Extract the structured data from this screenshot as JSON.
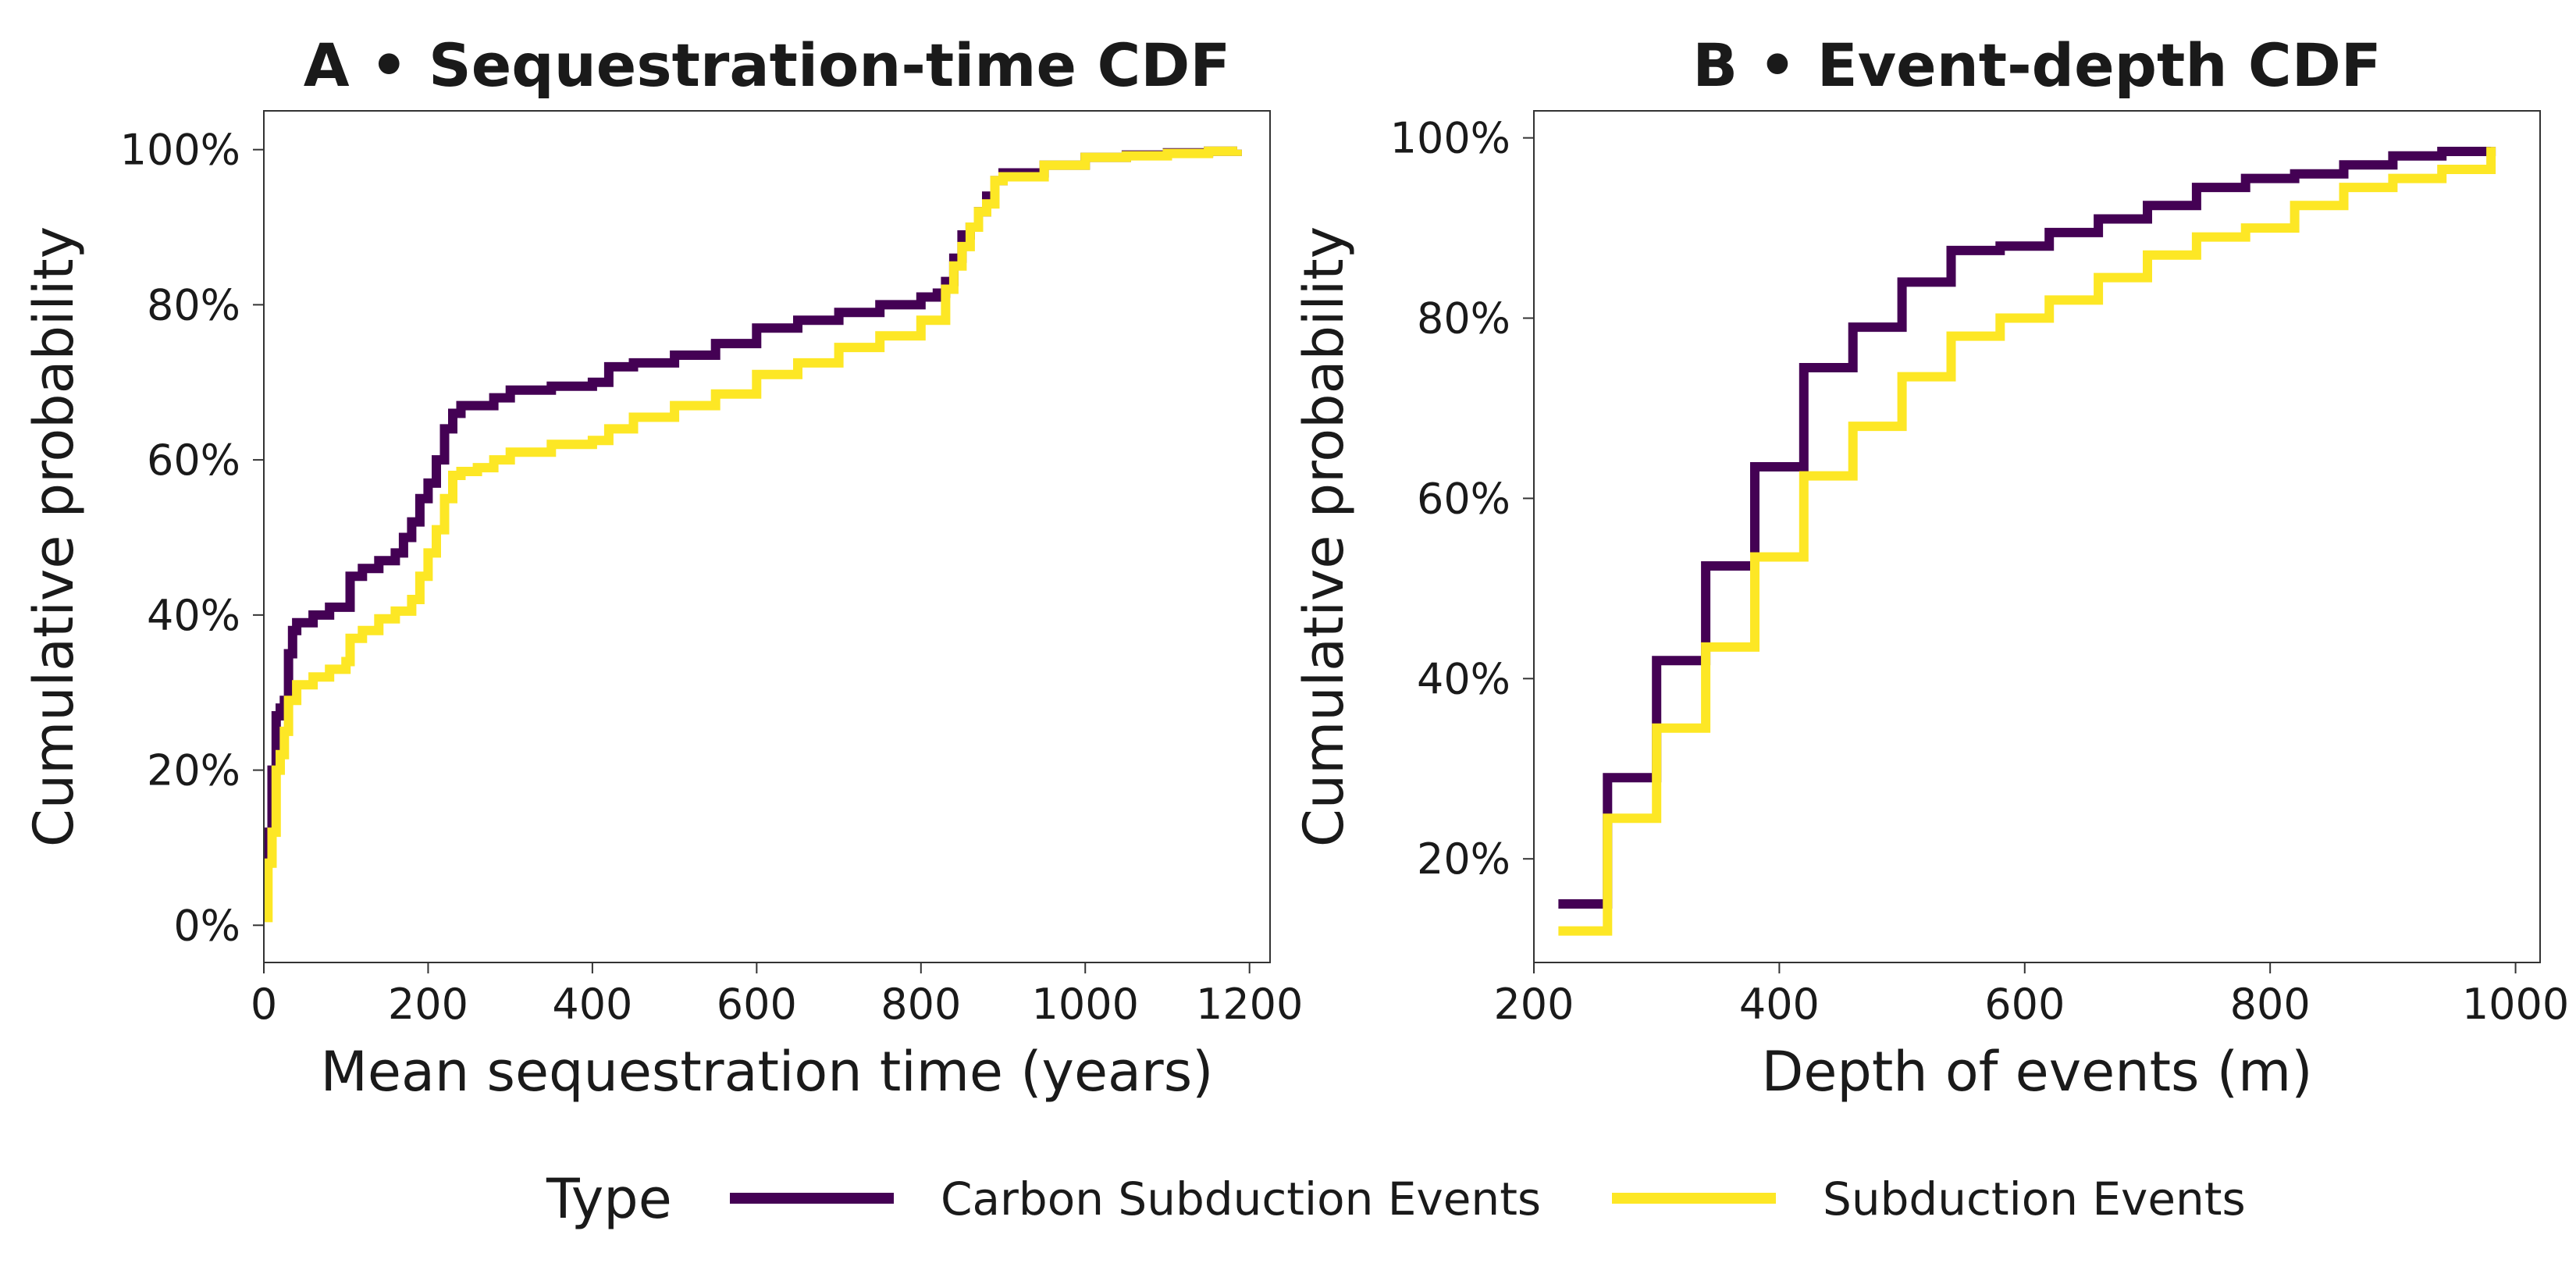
{
  "legend": {
    "title": "Type",
    "entries": [
      {
        "label": "Carbon Subduction Events",
        "color": "#440154"
      },
      {
        "label": "Subduction Events",
        "color": "#fde725"
      }
    ]
  },
  "chart_data": [
    {
      "type": "line",
      "step": true,
      "title": "A • Sequestration-time CDF",
      "xlabel": "Mean sequestration time (years)",
      "ylabel": "Cumulative probability",
      "xlim": [
        0,
        1225
      ],
      "ylim": [
        -0.048,
        1.05
      ],
      "xticks": [
        0,
        200,
        400,
        600,
        800,
        1000,
        1200
      ],
      "xtick_labels": [
        "0",
        "200",
        "400",
        "600",
        "800",
        "1000",
        "1200"
      ],
      "yticks": [
        0,
        0.2,
        0.4,
        0.6,
        0.8,
        1.0
      ],
      "ytick_labels": [
        "0%",
        "20%",
        "40%",
        "60%",
        "80%",
        "100%"
      ],
      "series": [
        {
          "name": "Carbon Subduction Events",
          "color": "#440154",
          "x": [
            0,
            5,
            10,
            15,
            20,
            25,
            30,
            35,
            40,
            60,
            80,
            100,
            105,
            120,
            140,
            160,
            170,
            180,
            190,
            200,
            210,
            220,
            230,
            240,
            260,
            280,
            300,
            350,
            400,
            420,
            450,
            500,
            550,
            600,
            650,
            700,
            750,
            800,
            820,
            830,
            840,
            850,
            860,
            870,
            880,
            890,
            900,
            950,
            1000,
            1050,
            1100,
            1150,
            1185
          ],
          "y": [
            0.08,
            0.12,
            0.2,
            0.27,
            0.28,
            0.29,
            0.35,
            0.38,
            0.39,
            0.4,
            0.41,
            0.41,
            0.45,
            0.46,
            0.47,
            0.48,
            0.5,
            0.52,
            0.55,
            0.57,
            0.6,
            0.64,
            0.66,
            0.67,
            0.67,
            0.68,
            0.69,
            0.695,
            0.7,
            0.72,
            0.725,
            0.735,
            0.75,
            0.77,
            0.78,
            0.79,
            0.8,
            0.81,
            0.815,
            0.83,
            0.86,
            0.89,
            0.9,
            0.92,
            0.94,
            0.96,
            0.97,
            0.98,
            0.99,
            0.993,
            0.996,
            0.998,
            1.0
          ]
        },
        {
          "name": "Subduction Events",
          "color": "#fde725",
          "x": [
            0,
            5,
            10,
            15,
            20,
            25,
            30,
            40,
            60,
            80,
            100,
            105,
            120,
            140,
            160,
            180,
            190,
            200,
            210,
            220,
            230,
            240,
            260,
            280,
            300,
            350,
            400,
            420,
            450,
            500,
            550,
            600,
            650,
            700,
            750,
            800,
            830,
            840,
            850,
            860,
            870,
            880,
            890,
            900,
            950,
            1000,
            1050,
            1100,
            1150,
            1185
          ],
          "y": [
            0.01,
            0.08,
            0.12,
            0.2,
            0.22,
            0.25,
            0.29,
            0.31,
            0.32,
            0.33,
            0.34,
            0.37,
            0.38,
            0.395,
            0.405,
            0.42,
            0.45,
            0.48,
            0.51,
            0.55,
            0.58,
            0.585,
            0.59,
            0.6,
            0.61,
            0.62,
            0.625,
            0.64,
            0.655,
            0.67,
            0.685,
            0.71,
            0.725,
            0.745,
            0.76,
            0.78,
            0.82,
            0.85,
            0.875,
            0.9,
            0.92,
            0.93,
            0.96,
            0.965,
            0.98,
            0.99,
            0.992,
            0.995,
            0.998,
            1.0
          ]
        }
      ]
    },
    {
      "type": "line",
      "step": true,
      "title": "B • Event-depth CDF",
      "xlabel": "Depth of events (m)",
      "ylabel": "Cumulative probability",
      "xlim": [
        200,
        1020
      ],
      "ylim": [
        0.085,
        1.03
      ],
      "xticks": [
        200,
        400,
        600,
        800,
        1000
      ],
      "xtick_labels": [
        "200",
        "400",
        "600",
        "800",
        "1000"
      ],
      "yticks": [
        0.2,
        0.4,
        0.6,
        0.8,
        1.0
      ],
      "ytick_labels": [
        "20%",
        "40%",
        "60%",
        "80%",
        "100%"
      ],
      "series": [
        {
          "name": "Carbon Subduction Events",
          "color": "#440154",
          "x": [
            220,
            260,
            300,
            340,
            380,
            420,
            460,
            500,
            540,
            580,
            620,
            660,
            700,
            740,
            780,
            820,
            860,
            900,
            940,
            980
          ],
          "y": [
            0.15,
            0.29,
            0.42,
            0.525,
            0.635,
            0.745,
            0.79,
            0.84,
            0.875,
            0.88,
            0.895,
            0.91,
            0.925,
            0.945,
            0.955,
            0.96,
            0.97,
            0.98,
            0.985,
            0.99
          ]
        },
        {
          "name": "Subduction Events",
          "color": "#fde725",
          "x": [
            220,
            260,
            300,
            340,
            380,
            420,
            460,
            500,
            540,
            580,
            620,
            660,
            700,
            740,
            780,
            820,
            860,
            900,
            940,
            980
          ],
          "y": [
            0.12,
            0.245,
            0.345,
            0.435,
            0.535,
            0.625,
            0.68,
            0.735,
            0.78,
            0.8,
            0.82,
            0.845,
            0.87,
            0.89,
            0.9,
            0.925,
            0.945,
            0.955,
            0.965,
            0.99
          ]
        }
      ]
    }
  ]
}
